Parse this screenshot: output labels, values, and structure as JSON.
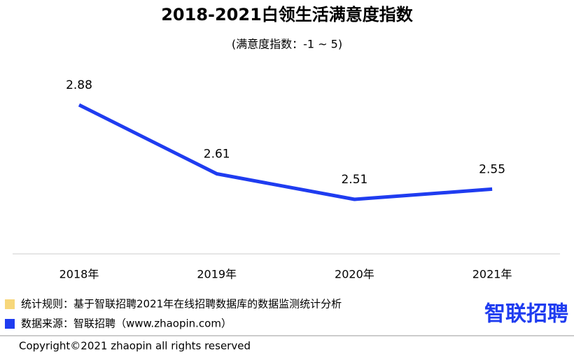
{
  "chart_data": {
    "type": "line",
    "title": "2018-2021白领生活满意度指数",
    "subtitle": "(满意度指数：-1 ~ 5)",
    "categories": [
      "2018年",
      "2019年",
      "2020年",
      "2021年"
    ],
    "values": [
      2.88,
      2.61,
      2.51,
      2.55
    ],
    "color": "#1f3cf0",
    "notes": [
      {
        "text": "统计规则：基于智联招聘2021年在线招聘数据库的数据监测统计分析",
        "color": "#f7d77a"
      },
      {
        "text": "数据来源：智联招聘（www.zhaopin.com）",
        "color": "#1f3cf0"
      }
    ],
    "logo": "智联招聘",
    "copyright": "Copyright©2021 zhaopin all rights reserved"
  }
}
